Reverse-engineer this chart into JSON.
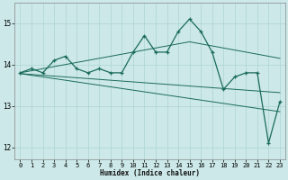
{
  "x": [
    0,
    1,
    2,
    3,
    4,
    5,
    6,
    7,
    8,
    9,
    10,
    11,
    12,
    13,
    14,
    15,
    16,
    17,
    18,
    19,
    20,
    21,
    22,
    23
  ],
  "y_main": [
    13.8,
    13.9,
    13.8,
    14.1,
    14.2,
    13.9,
    13.8,
    13.9,
    13.8,
    13.8,
    14.3,
    14.7,
    14.3,
    14.3,
    14.8,
    15.1,
    14.8,
    14.3,
    13.4,
    13.7,
    13.8,
    13.8,
    12.1,
    13.1
  ],
  "trend_upper": [
    13.8,
    13.85,
    13.9,
    13.95,
    14.0,
    14.05,
    14.1,
    14.15,
    14.2,
    14.25,
    14.3,
    14.35,
    14.4,
    14.45,
    14.5,
    14.55,
    14.5,
    14.45,
    14.4,
    14.35,
    14.3,
    14.25,
    14.2,
    14.15
  ],
  "trend_mid": [
    13.78,
    13.76,
    13.74,
    13.72,
    13.7,
    13.68,
    13.66,
    13.64,
    13.62,
    13.6,
    13.58,
    13.56,
    13.54,
    13.52,
    13.5,
    13.48,
    13.46,
    13.44,
    13.42,
    13.4,
    13.38,
    13.36,
    13.34,
    13.32
  ],
  "trend_lower": [
    13.78,
    13.74,
    13.7,
    13.66,
    13.62,
    13.58,
    13.54,
    13.5,
    13.46,
    13.42,
    13.38,
    13.34,
    13.3,
    13.26,
    13.22,
    13.18,
    13.14,
    13.1,
    13.06,
    13.02,
    12.98,
    12.94,
    12.9,
    12.86
  ],
  "line_color": "#1a6b5a",
  "bg_color": "#cce8e8",
  "grid_color": "#add4d4",
  "xlabel": "Humidex (Indice chaleur)",
  "ylim": [
    11.7,
    15.5
  ],
  "xlim": [
    -0.5,
    23.5
  ],
  "yticks": [
    12,
    13,
    14,
    15
  ],
  "xticks": [
    0,
    1,
    2,
    3,
    4,
    5,
    6,
    7,
    8,
    9,
    10,
    11,
    12,
    13,
    14,
    15,
    16,
    17,
    18,
    19,
    20,
    21,
    22,
    23
  ],
  "xlabel_fontsize": 5.5,
  "tick_fontsize": 5.0,
  "ytick_fontsize": 5.5
}
